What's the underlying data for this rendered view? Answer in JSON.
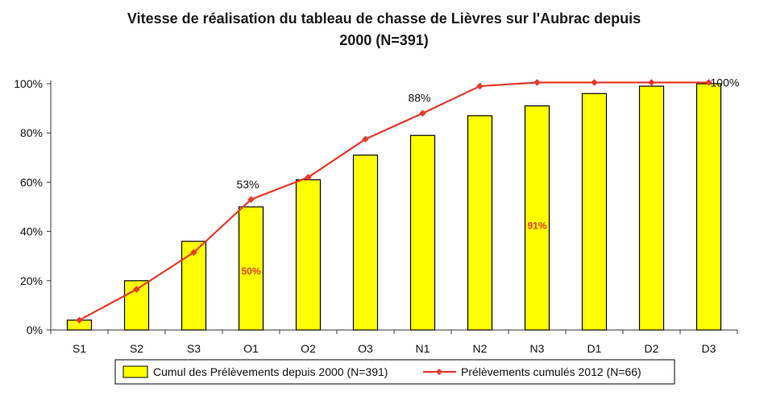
{
  "title_line1": "Vitesse de réalisation du tableau de chasse de Lièvres sur l'Aubrac depuis",
  "title_line2": "2000 (N=391)",
  "colors": {
    "bar_fill": "#ffff00",
    "bar_stroke": "#000000",
    "line": "#e53a2a",
    "axis": "#333333",
    "bar_label": "#e53a2a"
  },
  "chart_data": {
    "type": "bar",
    "title": "Vitesse de réalisation du tableau de chasse de Lièvres sur l'Aubrac depuis 2000 (N=391)",
    "categories": [
      "S1",
      "S2",
      "S3",
      "O1",
      "O2",
      "O3",
      "N1",
      "N2",
      "N3",
      "D1",
      "D2",
      "D3"
    ],
    "yticks": [
      "0%",
      "20%",
      "40%",
      "60%",
      "80%",
      "100%"
    ],
    "ylim": [
      0,
      100
    ],
    "series": [
      {
        "name": "Cumul des Prélèvements depuis 2000 (N=391)",
        "kind": "bar",
        "values": [
          4,
          20,
          36,
          50,
          61,
          71,
          79,
          87,
          91,
          96,
          99,
          100
        ]
      },
      {
        "name": "Prélèvements cumulés 2012 (N=66)",
        "kind": "line",
        "values": [
          4,
          16.5,
          31.5,
          53,
          62,
          77.5,
          88,
          99,
          100.5,
          100.5,
          100.5,
          100.5
        ]
      }
    ],
    "bar_labels": [
      {
        "category": "O1",
        "text": "50%"
      },
      {
        "category": "N3",
        "text": "91%"
      }
    ],
    "line_labels": [
      {
        "category": "O1",
        "text": "53%"
      },
      {
        "category": "N1",
        "text": "88%"
      },
      {
        "category": "D3",
        "text": "100%"
      }
    ],
    "legend_position": "bottom"
  }
}
